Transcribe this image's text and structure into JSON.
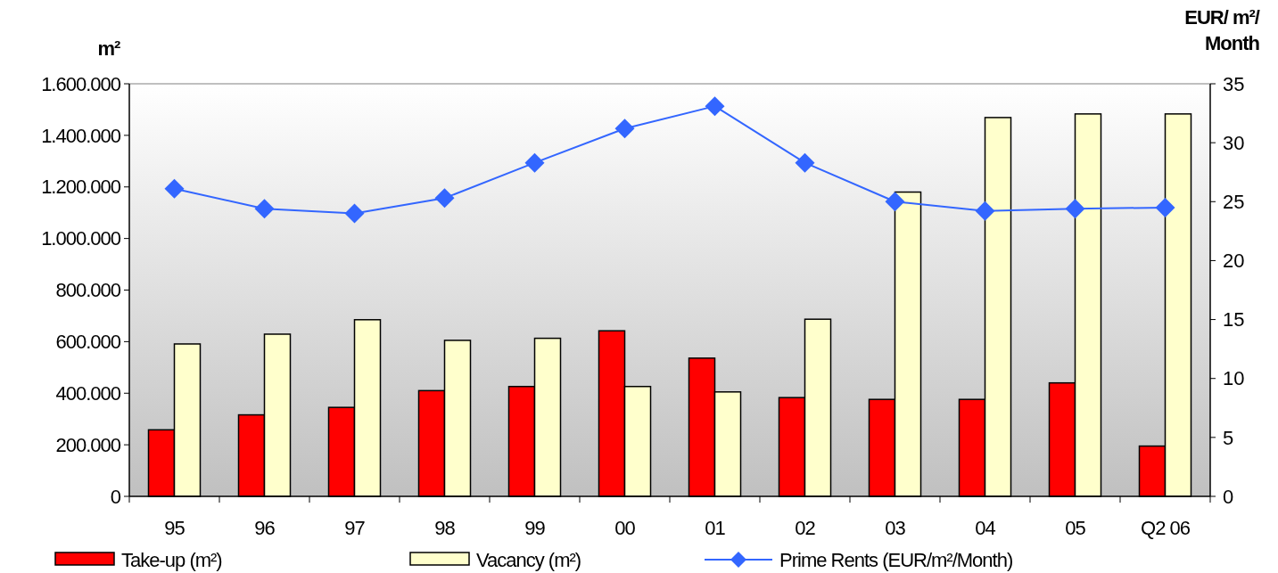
{
  "chart_data": {
    "type": "bar",
    "categories": [
      "95",
      "96",
      "97",
      "98",
      "99",
      "00",
      "01",
      "02",
      "03",
      "04",
      "05",
      "Q2 06"
    ],
    "series": [
      {
        "name": "Take-up (m²)",
        "color": "#ff0000",
        "values": [
          258000,
          316000,
          345000,
          410000,
          426000,
          642000,
          536000,
          383000,
          376000,
          376000,
          440000,
          195000
        ]
      },
      {
        "name": "Vacancy (m²)",
        "color": "#ffffcc",
        "values": [
          591000,
          629000,
          685000,
          605000,
          613000,
          426000,
          405000,
          687000,
          1180000,
          1469000,
          1483000,
          1483000
        ]
      },
      {
        "name": "Prime Rents (EUR/m²/Month)",
        "type": "line",
        "axis": "y2",
        "color": "#3366ff",
        "marker": "diamond",
        "values": [
          26.1,
          24.4,
          24.0,
          25.3,
          28.3,
          31.2,
          33.1,
          28.3,
          25.0,
          24.2,
          24.4,
          24.5
        ]
      }
    ],
    "ylabel": "m²",
    "y2label": "EUR/ m²/ Month",
    "ylim": [
      0,
      1600000
    ],
    "yticks": [
      {
        "value": 0,
        "label": "0"
      },
      {
        "value": 200000,
        "label": "200.000"
      },
      {
        "value": 400000,
        "label": "400.000"
      },
      {
        "value": 600000,
        "label": "600.000"
      },
      {
        "value": 800000,
        "label": "800.000"
      },
      {
        "value": 1000000,
        "label": "1.000.000"
      },
      {
        "value": 1200000,
        "label": "1.200.000"
      },
      {
        "value": 1400000,
        "label": "1.400.000"
      },
      {
        "value": 1600000,
        "label": "1.600.000"
      }
    ],
    "y2lim": [
      0,
      35
    ],
    "y2ticks": [
      0,
      5,
      10,
      15,
      20,
      25,
      30,
      35
    ],
    "grid": false,
    "legend": "bottom"
  }
}
